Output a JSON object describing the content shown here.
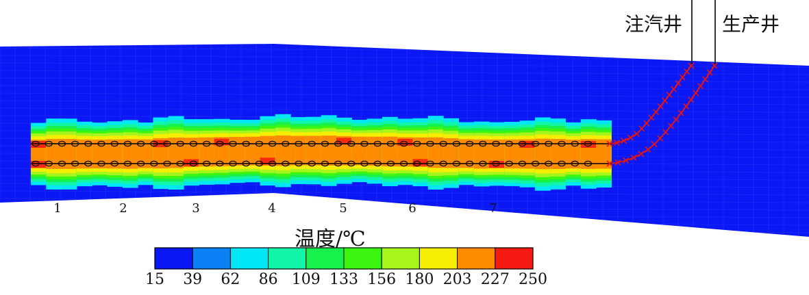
{
  "wells": {
    "injector_label": "注汽井",
    "producer_label": "生产井"
  },
  "segment_labels": [
    "1",
    "2",
    "3",
    "4",
    "5",
    "6",
    "7"
  ],
  "legend": {
    "title": "温度/℃",
    "ticks": [
      "15",
      "39",
      "62",
      "86",
      "109",
      "133",
      "156",
      "180",
      "203",
      "227",
      "250"
    ],
    "colors": [
      "#0a18f5",
      "#0a82f5",
      "#00e6f5",
      "#10f5a8",
      "#18f04c",
      "#3cf510",
      "#a6f51c",
      "#f5ee00",
      "#ff8c00",
      "#f51a12"
    ]
  },
  "colors": {
    "reservoir": "#0a18f5",
    "well_line": "#000000",
    "marker_x": "#e8140e",
    "marker_o": "#111111"
  }
}
